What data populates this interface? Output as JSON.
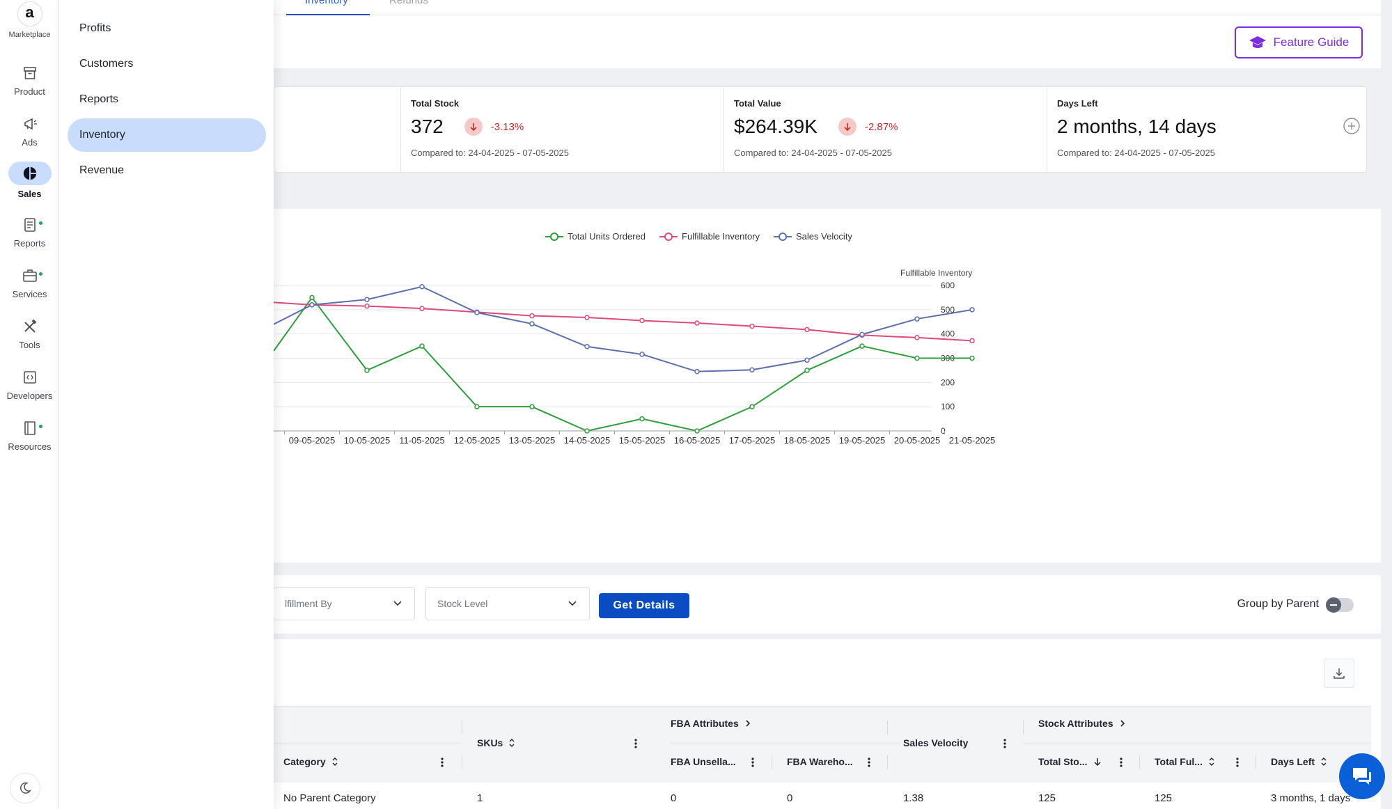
{
  "rail": {
    "marketplace_label": "Marketplace",
    "items": [
      {
        "label": "Product",
        "icon": "archive-box-icon"
      },
      {
        "label": "Ads",
        "icon": "megaphone-icon"
      },
      {
        "label": "Sales",
        "icon": "pie-chart-icon"
      },
      {
        "label": "Reports",
        "icon": "document-icon"
      },
      {
        "label": "Services",
        "icon": "briefcase-icon"
      },
      {
        "label": "Tools",
        "icon": "tools-icon"
      },
      {
        "label": "Developers",
        "icon": "code-icon"
      },
      {
        "label": "Resources",
        "icon": "book-icon"
      }
    ]
  },
  "submenu": {
    "items": [
      "Profits",
      "Customers",
      "Reports",
      "Inventory",
      "Revenue"
    ],
    "active": "Inventory"
  },
  "tabs": {
    "inventory": "Inventory",
    "refunds": "Refunds"
  },
  "header": {
    "feature_guide": "Feature Guide"
  },
  "stats": [
    {
      "title": "Total Stock",
      "value": "372",
      "delta": "-3.13%",
      "compared": "Compared to: 24-04-2025 - 07-05-2025"
    },
    {
      "title": "Total Value",
      "value": "$264.39K",
      "delta": "-2.87%",
      "compared": "Compared to: 24-04-2025 - 07-05-2025"
    },
    {
      "title": "Days Left",
      "value": "2 months, 14 days",
      "compared": "Compared to: 24-04-2025 - 07-05-2025"
    }
  ],
  "chart_data": {
    "type": "line",
    "x": [
      "09-05-2025",
      "10-05-2025",
      "11-05-2025",
      "12-05-2025",
      "13-05-2025",
      "14-05-2025",
      "15-05-2025",
      "16-05-2025",
      "17-05-2025",
      "18-05-2025",
      "19-05-2025",
      "20-05-2025",
      "21-05-2025"
    ],
    "yticks": [
      0,
      100,
      200,
      300,
      400,
      500,
      600
    ],
    "ylim": [
      0,
      600
    ],
    "ylabel_right": "Fulfillable Inventory",
    "series": [
      {
        "name": "Total Units Ordered",
        "color": "#2e9d3a",
        "values": [
          550,
          250,
          350,
          100,
          100,
          0,
          50,
          0,
          100,
          250,
          350,
          300,
          300
        ]
      },
      {
        "name": "Fulfillable Inventory",
        "color": "#e0487a",
        "values": [
          520,
          515,
          505,
          490,
          475,
          468,
          455,
          445,
          432,
          418,
          395,
          385,
          372
        ]
      },
      {
        "name": "Sales Velocity",
        "color": "#5b6fae",
        "values": [
          520,
          542,
          595,
          488,
          442,
          348,
          316,
          245,
          252,
          292,
          398,
          462,
          500
        ]
      }
    ]
  },
  "filters": {
    "fulfillment_placeholder": "lfillment By",
    "stock_placeholder": "Stock Level",
    "get_details": "Get Details",
    "group_by_parent": "Group by Parent"
  },
  "table": {
    "group_headers": {
      "fba": "FBA Attributes",
      "stock": "Stock Attributes"
    },
    "columns": {
      "category": "Category",
      "skus": "SKUs",
      "fba_unsellable": "FBA Unsella...",
      "fba_warehouse": "FBA Wareho...",
      "sales_velocity": "Sales Velocity",
      "total_stock": "Total Sto...",
      "total_fulfillable": "Total Ful...",
      "days_left": "Days Left"
    },
    "row": {
      "category": "No Parent Category",
      "skus": "1",
      "fba_unsellable": "0",
      "fba_warehouse": "0",
      "sales_velocity": "1.38",
      "total_stock": "125",
      "total_fulfillable": "125",
      "days_left": "3 months, 1 days"
    }
  }
}
